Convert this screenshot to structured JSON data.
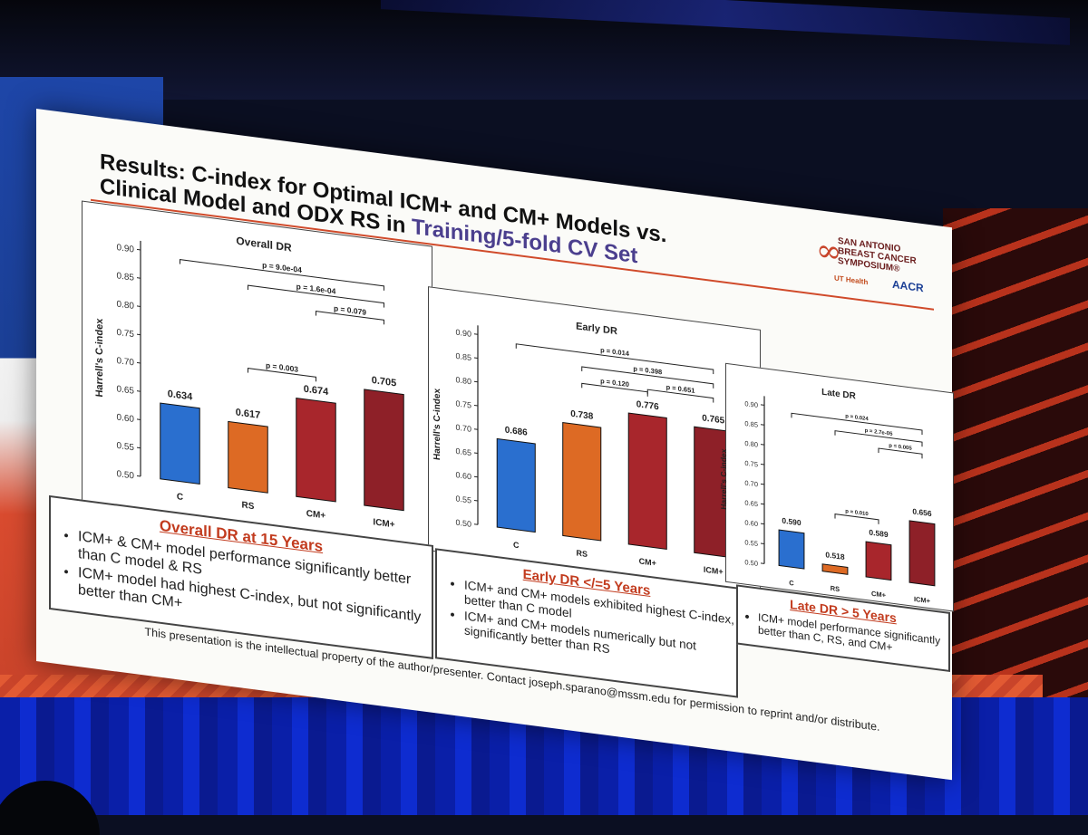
{
  "slide": {
    "title_part1": "Results: C-index for Optimal ICM+ and CM+ Models vs.",
    "title_part2": "Clinical Model and ODX RS in ",
    "title_highlight": "Training/5-fold CV Set",
    "footer": "This presentation is the intellectual property of the author/presenter. Contact joseph.sparano@mssm.edu for permission to reprint and/or distribute.",
    "logo_lines": [
      "SAN ANTONIO",
      "BREAST CANCER",
      "SYMPOSIUM®"
    ],
    "logo_ut": "UT Health",
    "logo_aacr": "AACR"
  },
  "colors": {
    "C": "#2a6fcf",
    "RS": "#dd6a24",
    "CM+": "#a8262c",
    "ICM+": "#8e2028",
    "accent": "#c23b1e"
  },
  "chart_data": [
    {
      "type": "bar",
      "title": "Overall DR",
      "ylabel": "Harrell's C-index",
      "categories": [
        "C",
        "RS",
        "CM+",
        "ICM+"
      ],
      "values": [
        0.634,
        0.617,
        0.674,
        0.705
      ],
      "value_labels": [
        "0.634",
        "0.617",
        "0.674",
        "0.705"
      ],
      "ylim": [
        0.5,
        0.9
      ],
      "yticks": [
        "0.50",
        "0.55",
        "0.60",
        "0.65",
        "0.70",
        "0.75",
        "0.80",
        "0.85",
        "0.90"
      ],
      "comparisons": [
        {
          "from": 0,
          "to": 3,
          "label": "p = 9.0e-04"
        },
        {
          "from": 1,
          "to": 3,
          "label": "p = 1.6e-04"
        },
        {
          "from": 2,
          "to": 3,
          "label": "p = 0.079"
        },
        {
          "from": 1,
          "to": 2,
          "label": "p = 0.003"
        }
      ]
    },
    {
      "type": "bar",
      "title": "Early DR",
      "ylabel": "Harrell's C-index",
      "categories": [
        "C",
        "RS",
        "CM+",
        "ICM+"
      ],
      "values": [
        0.686,
        0.738,
        0.776,
        0.765
      ],
      "value_labels": [
        "0.686",
        "0.738",
        "0.776",
        "0.765"
      ],
      "ylim": [
        0.5,
        0.9
      ],
      "yticks": [
        "0.50",
        "0.55",
        "0.60",
        "0.65",
        "0.70",
        "0.75",
        "0.80",
        "0.85",
        "0.90"
      ],
      "comparisons": [
        {
          "from": 0,
          "to": 3,
          "label": "p = 0.014"
        },
        {
          "from": 1,
          "to": 3,
          "label": "p = 0.398"
        },
        {
          "from": 2,
          "to": 3,
          "label": "p = 0.651"
        },
        {
          "from": 1,
          "to": 2,
          "label": "p = 0.120"
        }
      ]
    },
    {
      "type": "bar",
      "title": "Late DR",
      "ylabel": "Harrell's C-index",
      "categories": [
        "C",
        "RS",
        "CM+",
        "ICM+"
      ],
      "values": [
        0.59,
        0.518,
        0.589,
        0.656
      ],
      "value_labels": [
        "0.590",
        "0.518",
        "0.589",
        "0.656"
      ],
      "ylim": [
        0.5,
        0.9
      ],
      "yticks": [
        "0.50",
        "0.55",
        "0.60",
        "0.65",
        "0.70",
        "0.75",
        "0.80",
        "0.85",
        "0.90"
      ],
      "comparisons": [
        {
          "from": 0,
          "to": 3,
          "label": "p = 0.024"
        },
        {
          "from": 1,
          "to": 3,
          "label": "p = 2.7e-05"
        },
        {
          "from": 2,
          "to": 3,
          "label": "p = 0.005"
        },
        {
          "from": 1,
          "to": 2,
          "label": "p = 0.010"
        }
      ]
    }
  ],
  "panels": [
    {
      "heading": "Overall DR at 15 Years",
      "bullets": [
        "ICM+ & CM+ model performance significantly better than C model & RS",
        "ICM+ model had highest C-index, but not significantly better than CM+"
      ]
    },
    {
      "heading": "Early DR </=5 Years",
      "bullets": [
        "ICM+ and CM+ models exhibited highest C-index, better than C model",
        "ICM+ and CM+ models numerically but not significantly better than RS"
      ]
    },
    {
      "heading": "Late DR > 5 Years",
      "bullets": [
        "ICM+ model performance significantly better than C, RS, and CM+"
      ]
    }
  ]
}
